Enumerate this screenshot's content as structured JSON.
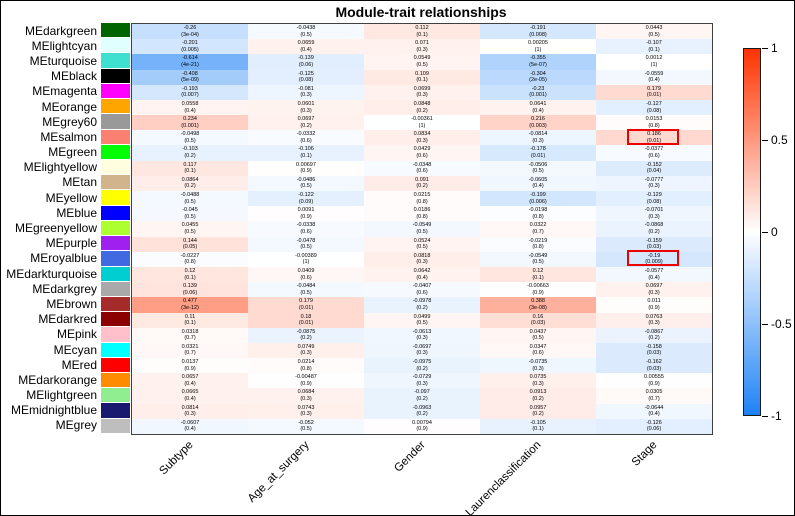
{
  "title": "Module-trait relationships",
  "chart_data": {
    "type": "heatmap",
    "title": "Module-trait relationships",
    "value_range": [
      -1,
      1
    ],
    "cell_format": "correlation with (p-value) beneath",
    "columns": [
      "Subtype",
      "Age_at_surgery",
      "Gender",
      "Laurenclassification",
      "Stage"
    ],
    "rows": [
      {
        "name": "MEdarkgreen",
        "swatch": "#006400",
        "values": [
          [
            "-0.26",
            "3e-04"
          ],
          [
            "-0.0438",
            "0.5"
          ],
          [
            "0.112",
            "0.1"
          ],
          [
            "-0.191",
            "0.008"
          ],
          [
            "0.0443",
            "0.5"
          ]
        ]
      },
      {
        "name": "MElightcyan",
        "swatch": "#e0ffff",
        "values": [
          [
            "-0.201",
            "0.005"
          ],
          [
            "0.0659",
            "0.4"
          ],
          [
            "0.071",
            "0.3"
          ],
          [
            "0.00205",
            "1"
          ],
          [
            "-0.107",
            "0.1"
          ]
        ]
      },
      {
        "name": "MEturquoise",
        "swatch": "#40e0d0",
        "values": [
          [
            "-0.614",
            "4e-21"
          ],
          [
            "-0.139",
            "0.06"
          ],
          [
            "0.0549",
            "0.5"
          ],
          [
            "-0.355",
            "5e-07"
          ],
          [
            "0.0012",
            "1"
          ]
        ]
      },
      {
        "name": "MEblack",
        "swatch": "#000000",
        "values": [
          [
            "-0.408",
            "5e-09"
          ],
          [
            "-0.125",
            "0.08"
          ],
          [
            "0.109",
            "0.1"
          ],
          [
            "-0.304",
            "2e-05"
          ],
          [
            "-0.0559",
            "0.4"
          ]
        ]
      },
      {
        "name": "MEmagenta",
        "swatch": "#ff00ff",
        "values": [
          [
            "-0.193",
            "0.007"
          ],
          [
            "-0.081",
            "0.3"
          ],
          [
            "0.0699",
            "0.3"
          ],
          [
            "-0.23",
            "0.001"
          ],
          [
            "0.179",
            "0.01"
          ]
        ]
      },
      {
        "name": "MEorange",
        "swatch": "#ffa500",
        "values": [
          [
            "0.0558",
            "0.4"
          ],
          [
            "0.0601",
            "0.3"
          ],
          [
            "0.0848",
            "0.2"
          ],
          [
            "0.0641",
            "0.4"
          ],
          [
            "-0.127",
            "0.08"
          ]
        ]
      },
      {
        "name": "MEgrey60",
        "swatch": "#999999",
        "values": [
          [
            "0.234",
            "0.001"
          ],
          [
            "0.0697",
            "0.2"
          ],
          [
            "-0.00361",
            "1"
          ],
          [
            "0.216",
            "0.003"
          ],
          [
            "0.0153",
            "0.8"
          ]
        ]
      },
      {
        "name": "MEsalmon",
        "swatch": "#fa8072",
        "values": [
          [
            "-0.0498",
            "0.5"
          ],
          [
            "-0.0332",
            "0.6"
          ],
          [
            "0.0834",
            "0.3"
          ],
          [
            "-0.0814",
            "0.3"
          ],
          [
            "0.186",
            "0.01"
          ]
        ]
      },
      {
        "name": "MEgreen",
        "swatch": "#00ff00",
        "values": [
          [
            "-0.103",
            "0.2"
          ],
          [
            "-0.106",
            "0.1"
          ],
          [
            "0.0429",
            "0.6"
          ],
          [
            "-0.178",
            "0.01"
          ],
          [
            "-0.0377",
            "0.6"
          ]
        ]
      },
      {
        "name": "MElightyellow",
        "swatch": "#ffffe0",
        "values": [
          [
            "0.117",
            "0.1"
          ],
          [
            "0.00697",
            "0.9"
          ],
          [
            "-0.0348",
            "0.6"
          ],
          [
            "-0.0506",
            "0.5"
          ],
          [
            "-0.152",
            "0.04"
          ]
        ]
      },
      {
        "name": "MEtan",
        "swatch": "#d2b48c",
        "values": [
          [
            "0.0864",
            "0.2"
          ],
          [
            "-0.0486",
            "0.5"
          ],
          [
            "0.091",
            "0.2"
          ],
          [
            "-0.0605",
            "0.4"
          ],
          [
            "-0.0777",
            "0.3"
          ]
        ]
      },
      {
        "name": "MEyellow",
        "swatch": "#ffff00",
        "values": [
          [
            "-0.0488",
            "0.5"
          ],
          [
            "-0.122",
            "0.09"
          ],
          [
            "0.0215",
            "0.8"
          ],
          [
            "-0.199",
            "0.006"
          ],
          [
            "-0.129",
            "0.08"
          ]
        ]
      },
      {
        "name": "MEblue",
        "swatch": "#0000ff",
        "values": [
          [
            "-0.045",
            "0.5"
          ],
          [
            "0.0091",
            "0.9"
          ],
          [
            "0.0186",
            "0.8"
          ],
          [
            "-0.0198",
            "0.8"
          ],
          [
            "-0.0701",
            "0.3"
          ]
        ]
      },
      {
        "name": "MEgreenyellow",
        "swatch": "#adff2f",
        "values": [
          [
            "0.0455",
            "0.5"
          ],
          [
            "-0.0338",
            "0.6"
          ],
          [
            "-0.0549",
            "0.5"
          ],
          [
            "0.0322",
            "0.7"
          ],
          [
            "-0.0868",
            "0.2"
          ]
        ]
      },
      {
        "name": "MEpurple",
        "swatch": "#a020f0",
        "values": [
          [
            "0.144",
            "0.05"
          ],
          [
            "-0.0478",
            "0.5"
          ],
          [
            "0.0524",
            "0.5"
          ],
          [
            "-0.0219",
            "0.8"
          ],
          [
            "-0.159",
            "0.03"
          ]
        ]
      },
      {
        "name": "MEroyalblue",
        "swatch": "#4169e1",
        "values": [
          [
            "-0.0227",
            "0.8"
          ],
          [
            "-0.00389",
            "1"
          ],
          [
            "0.0818",
            "0.3"
          ],
          [
            "-0.0549",
            "0.5"
          ],
          [
            "-0.19",
            "0.009"
          ]
        ]
      },
      {
        "name": "MEdarkturquoise",
        "swatch": "#00ced1",
        "values": [
          [
            "0.12",
            "0.1"
          ],
          [
            "0.0409",
            "0.6"
          ],
          [
            "0.0642",
            "0.4"
          ],
          [
            "0.12",
            "0.1"
          ],
          [
            "-0.0577",
            "0.4"
          ]
        ]
      },
      {
        "name": "MEdarkgrey",
        "swatch": "#a9a9a9",
        "values": [
          [
            "0.139",
            "0.06"
          ],
          [
            "-0.0484",
            "0.5"
          ],
          [
            "-0.0407",
            "0.6"
          ],
          [
            "-0.00663",
            "0.9"
          ],
          [
            "0.0697",
            "0.3"
          ]
        ]
      },
      {
        "name": "MEbrown",
        "swatch": "#a52a2a",
        "values": [
          [
            "0.477",
            "3e-12"
          ],
          [
            "0.179",
            "0.01"
          ],
          [
            "-0.0978",
            "0.2"
          ],
          [
            "0.388",
            "3e-08"
          ],
          [
            "0.011",
            "0.9"
          ]
        ]
      },
      {
        "name": "MEdarkred",
        "swatch": "#8b0000",
        "values": [
          [
            "0.11",
            "0.1"
          ],
          [
            "0.18",
            "0.01"
          ],
          [
            "0.0499",
            "0.5"
          ],
          [
            "0.16",
            "0.03"
          ],
          [
            "0.0763",
            "0.3"
          ]
        ]
      },
      {
        "name": "MEpink",
        "swatch": "#ffc0cb",
        "values": [
          [
            "0.0318",
            "0.7"
          ],
          [
            "-0.0875",
            "0.2"
          ],
          [
            "-0.0613",
            "0.3"
          ],
          [
            "0.0437",
            "0.5"
          ],
          [
            "-0.0867",
            "0.2"
          ]
        ]
      },
      {
        "name": "MEcyan",
        "swatch": "#00ffff",
        "values": [
          [
            "0.0321",
            "0.7"
          ],
          [
            "0.0749",
            "0.3"
          ],
          [
            "-0.0697",
            "0.3"
          ],
          [
            "0.0347",
            "0.6"
          ],
          [
            "-0.158",
            "0.03"
          ]
        ]
      },
      {
        "name": "MEred",
        "swatch": "#ff0000",
        "values": [
          [
            "0.0137",
            "0.9"
          ],
          [
            "0.0214",
            "0.8"
          ],
          [
            "-0.0975",
            "0.2"
          ],
          [
            "-0.0735",
            "0.3"
          ],
          [
            "-0.162",
            "0.03"
          ]
        ]
      },
      {
        "name": "MEdarkorange",
        "swatch": "#ff8c00",
        "values": [
          [
            "0.0657",
            "0.4"
          ],
          [
            "-0.00487",
            "0.9"
          ],
          [
            "-0.0729",
            "0.3"
          ],
          [
            "0.0735",
            "0.3"
          ],
          [
            "0.00555",
            "0.9"
          ]
        ]
      },
      {
        "name": "MElightgreen",
        "swatch": "#90ee90",
        "values": [
          [
            "0.0665",
            "0.4"
          ],
          [
            "0.0684",
            "0.3"
          ],
          [
            "-0.097",
            "0.2"
          ],
          [
            "0.0913",
            "0.2"
          ],
          [
            "0.0305",
            "0.7"
          ]
        ]
      },
      {
        "name": "MEmidnightblue",
        "swatch": "#191970",
        "values": [
          [
            "0.0814",
            "0.3"
          ],
          [
            "0.0743",
            "0.3"
          ],
          [
            "-0.0963",
            "0.2"
          ],
          [
            "0.0957",
            "0.2"
          ],
          [
            "-0.0644",
            "0.4"
          ]
        ]
      },
      {
        "name": "MEgrey",
        "swatch": "#bebebe",
        "values": [
          [
            "-0.0607",
            "0.4"
          ],
          [
            "-0.052",
            "0.5"
          ],
          [
            "0.00794",
            "0.9"
          ],
          [
            "-0.105",
            "0.1"
          ],
          [
            "-0.126",
            "0.06"
          ]
        ]
      }
    ],
    "highlighted_cells": [
      {
        "row": "MEsalmon",
        "row_index": 7,
        "column": "Stage",
        "col_index": 4,
        "value": "0.186",
        "p": "0.01"
      },
      {
        "row": "MEroyalblue",
        "row_index": 15,
        "column": "Stage",
        "col_index": 4,
        "value": "-0.19",
        "p": "0.009"
      }
    ],
    "colorbar": {
      "ticks": [
        "1",
        "0.5",
        "0",
        "-0.5",
        "-1"
      ],
      "max_color": "#ff3300",
      "zero_color": "#ffffff",
      "min_color": "#1e82f5"
    },
    "highlight_color": "#ee0000",
    "legend_position": "right",
    "grid": false
  }
}
